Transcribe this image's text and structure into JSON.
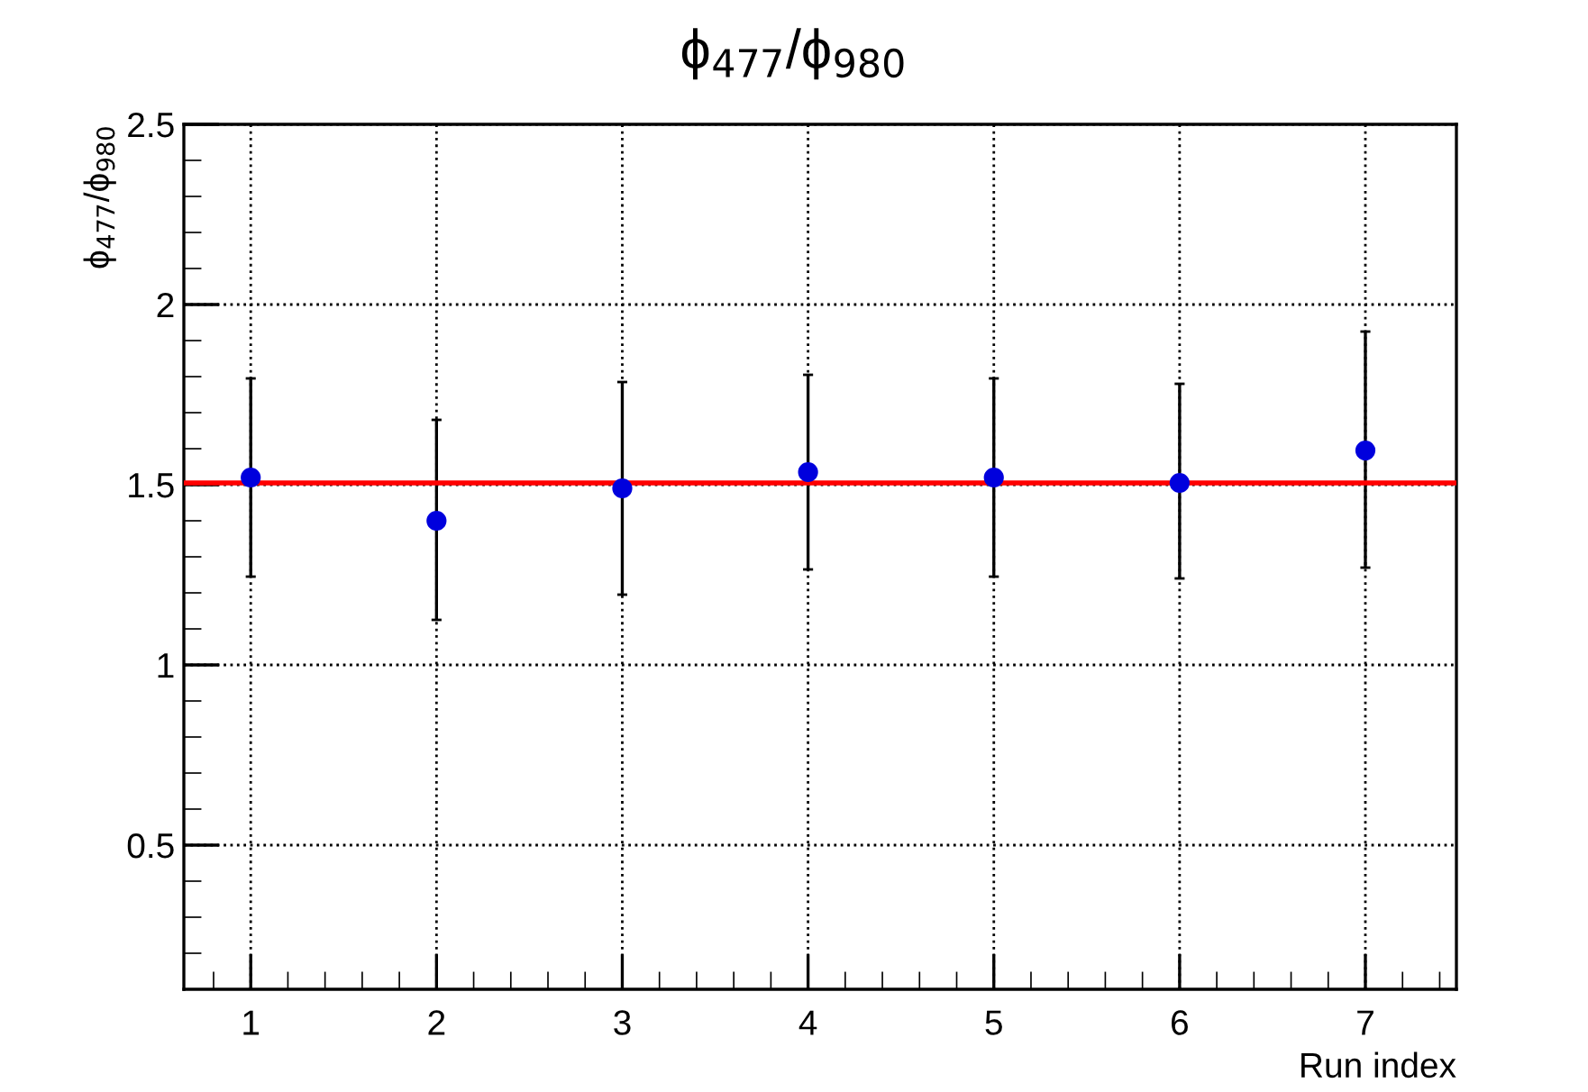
{
  "chart_data": {
    "type": "scatter",
    "title": "ϕ$_{477}$/ϕ$_{980}$",
    "xlabel": "Run index",
    "ylabel": "ϕ$_{477}$/ϕ$_{980}$",
    "x": [
      1,
      2,
      3,
      4,
      5,
      6,
      7
    ],
    "series": [
      {
        "color": "#0000dd",
        "values": [
          1.52,
          1.4,
          1.49,
          1.535,
          1.52,
          1.505,
          1.595
        ],
        "errors": [
          [
            1.245,
            1.795
          ],
          [
            1.125,
            1.68
          ],
          [
            1.195,
            1.785
          ],
          [
            1.265,
            1.805
          ],
          [
            1.245,
            1.795
          ],
          [
            1.24,
            1.78
          ],
          [
            1.27,
            1.925
          ]
        ]
      }
    ],
    "ref_lines": [
      {
        "axis": "y",
        "value": 1.505,
        "color": "#ff0000",
        "line_style": "solid"
      }
    ],
    "xlim": [
      0.64,
      7.49
    ],
    "ylim": [
      0.1,
      2.5
    ],
    "xticks": [
      1,
      2,
      3,
      4,
      5,
      6,
      7
    ],
    "yticks": [
      0.5,
      1,
      1.5,
      2,
      2.5
    ],
    "grid": true,
    "marker": "circle"
  }
}
